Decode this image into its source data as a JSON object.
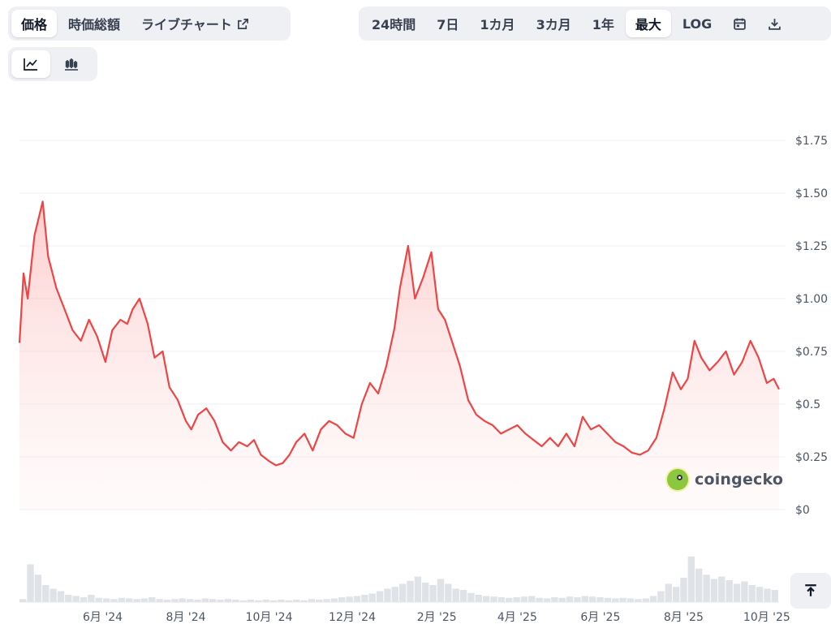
{
  "tabs_left": [
    {
      "label": "価格",
      "active": true
    },
    {
      "label": "時価総額",
      "active": false
    },
    {
      "label": "ライブチャート",
      "active": false
    }
  ],
  "range_tabs": [
    {
      "label": "24時間",
      "active": false
    },
    {
      "label": "7日",
      "active": false
    },
    {
      "label": "1カ月",
      "active": false
    },
    {
      "label": "3カ月",
      "active": false
    },
    {
      "label": "1年",
      "active": false
    },
    {
      "label": "最大",
      "active": true
    },
    {
      "label": "LOG",
      "active": false
    }
  ],
  "icons": {
    "external_link": "external-link-icon",
    "calendar": "calendar-icon",
    "download": "download-icon",
    "line_chart": "line-chart-icon",
    "candlestick": "candlestick-icon",
    "scroll_top": "arrow-up-to-line-icon"
  },
  "chart_view": {
    "active": "line"
  },
  "brand": {
    "name": "coingecko"
  },
  "colors": {
    "line": "#ef4444",
    "fill_top": "#fca5a5",
    "grid": "#eef0f3",
    "volume": "#d1d5db"
  },
  "chart_data": {
    "type": "area",
    "currency": "USD",
    "ylim": [
      0,
      1.75
    ],
    "y_ticks": [
      "$0",
      "$0.25",
      "$0.5",
      "$0.75",
      "$1.00",
      "$1.25",
      "$1.50",
      "$1.75"
    ],
    "x_ticks": [
      "6月 '24",
      "8月 '24",
      "10月 '24",
      "12月 '24",
      "2月 '25",
      "4月 '25",
      "6月 '25",
      "8月 '25",
      "10月 '25"
    ],
    "grid": true,
    "x": [
      "2024-04-01",
      "2024-04-04",
      "2024-04-07",
      "2024-04-12",
      "2024-04-18",
      "2024-04-22",
      "2024-04-28",
      "2024-05-04",
      "2024-05-10",
      "2024-05-16",
      "2024-05-22",
      "2024-05-28",
      "2024-06-03",
      "2024-06-08",
      "2024-06-14",
      "2024-06-19",
      "2024-06-23",
      "2024-06-28",
      "2024-07-04",
      "2024-07-09",
      "2024-07-15",
      "2024-07-20",
      "2024-07-26",
      "2024-08-01",
      "2024-08-05",
      "2024-08-10",
      "2024-08-16",
      "2024-08-22",
      "2024-08-28",
      "2024-09-03",
      "2024-09-09",
      "2024-09-15",
      "2024-09-20",
      "2024-09-25",
      "2024-10-01",
      "2024-10-06",
      "2024-10-11",
      "2024-10-16",
      "2024-10-21",
      "2024-10-27",
      "2024-11-02",
      "2024-11-08",
      "2024-11-14",
      "2024-11-20",
      "2024-11-26",
      "2024-12-02",
      "2024-12-08",
      "2024-12-14",
      "2024-12-20",
      "2024-12-26",
      "2025-01-01",
      "2025-01-05",
      "2025-01-11",
      "2025-01-16",
      "2025-01-22",
      "2025-01-28",
      "2025-02-02",
      "2025-02-07",
      "2025-02-12",
      "2025-02-18",
      "2025-02-24",
      "2025-03-02",
      "2025-03-08",
      "2025-03-14",
      "2025-03-20",
      "2025-03-26",
      "2025-04-01",
      "2025-04-07",
      "2025-04-13",
      "2025-04-19",
      "2025-04-25",
      "2025-05-01",
      "2025-05-07",
      "2025-05-13",
      "2025-05-19",
      "2025-05-25",
      "2025-05-31",
      "2025-06-06",
      "2025-06-12",
      "2025-06-18",
      "2025-06-24",
      "2025-06-30",
      "2025-07-06",
      "2025-07-12",
      "2025-07-18",
      "2025-07-24",
      "2025-07-30",
      "2025-08-04",
      "2025-08-09",
      "2025-08-14",
      "2025-08-20",
      "2025-08-26",
      "2025-09-01",
      "2025-09-07",
      "2025-09-13",
      "2025-09-19",
      "2025-09-25",
      "2025-10-01",
      "2025-10-06",
      "2025-10-10"
    ],
    "y": [
      0.79,
      1.12,
      1.0,
      1.3,
      1.46,
      1.2,
      1.05,
      0.95,
      0.85,
      0.8,
      0.9,
      0.82,
      0.7,
      0.85,
      0.9,
      0.88,
      0.95,
      1.0,
      0.88,
      0.72,
      0.75,
      0.58,
      0.52,
      0.42,
      0.38,
      0.45,
      0.48,
      0.42,
      0.32,
      0.28,
      0.32,
      0.3,
      0.33,
      0.26,
      0.23,
      0.21,
      0.22,
      0.26,
      0.32,
      0.36,
      0.28,
      0.38,
      0.42,
      0.4,
      0.36,
      0.34,
      0.5,
      0.6,
      0.55,
      0.68,
      0.86,
      1.05,
      1.25,
      1.0,
      1.1,
      1.22,
      0.95,
      0.9,
      0.8,
      0.68,
      0.52,
      0.45,
      0.42,
      0.4,
      0.36,
      0.38,
      0.4,
      0.36,
      0.33,
      0.3,
      0.34,
      0.3,
      0.36,
      0.3,
      0.44,
      0.38,
      0.4,
      0.36,
      0.32,
      0.3,
      0.27,
      0.26,
      0.28,
      0.34,
      0.48,
      0.65,
      0.57,
      0.62,
      0.8,
      0.72,
      0.66,
      0.7,
      0.75,
      0.64,
      0.7,
      0.8,
      0.72,
      0.6,
      0.62,
      0.57
    ]
  },
  "volume_data": [
    0.05,
    0.62,
    0.45,
    0.28,
    0.22,
    0.18,
    0.12,
    0.1,
    0.08,
    0.12,
    0.07,
    0.06,
    0.05,
    0.07,
    0.06,
    0.05,
    0.06,
    0.08,
    0.05,
    0.04,
    0.05,
    0.06,
    0.05,
    0.04,
    0.06,
    0.05,
    0.04,
    0.05,
    0.04,
    0.03,
    0.04,
    0.03,
    0.04,
    0.03,
    0.04,
    0.03,
    0.04,
    0.03,
    0.05,
    0.04,
    0.05,
    0.06,
    0.08,
    0.09,
    0.1,
    0.12,
    0.14,
    0.18,
    0.22,
    0.25,
    0.3,
    0.35,
    0.42,
    0.32,
    0.28,
    0.38,
    0.3,
    0.22,
    0.2,
    0.15,
    0.12,
    0.1,
    0.09,
    0.08,
    0.07,
    0.08,
    0.09,
    0.1,
    0.07,
    0.06,
    0.08,
    0.07,
    0.09,
    0.08,
    0.1,
    0.09,
    0.08,
    0.07,
    0.06,
    0.07,
    0.06,
    0.05,
    0.06,
    0.1,
    0.18,
    0.3,
    0.25,
    0.4,
    0.75,
    0.55,
    0.45,
    0.38,
    0.42,
    0.36,
    0.3,
    0.34,
    0.28,
    0.25,
    0.22,
    0.2
  ]
}
